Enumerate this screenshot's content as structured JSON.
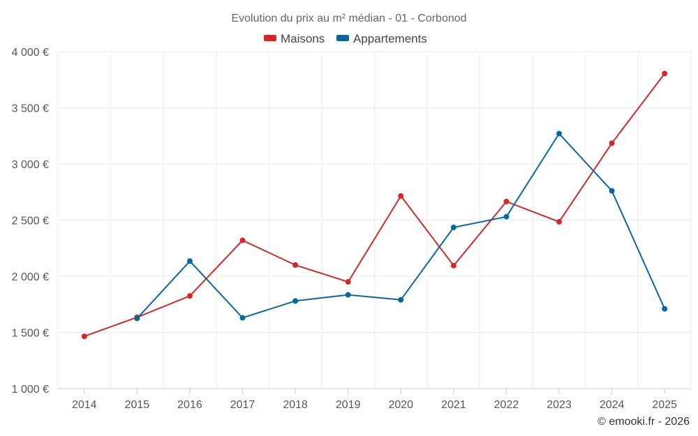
{
  "chart_data": {
    "type": "line",
    "title": "Evolution du prix au m² médian - 01 - Corbonod",
    "categories": [
      "2014",
      "2015",
      "2016",
      "2017",
      "2018",
      "2019",
      "2020",
      "2021",
      "2022",
      "2023",
      "2024",
      "2025"
    ],
    "series": [
      {
        "name": "Maisons",
        "color": "#d62728",
        "values": [
          1465,
          1635,
          1825,
          2320,
          2100,
          1950,
          2715,
          2095,
          2665,
          2485,
          3185,
          3805
        ]
      },
      {
        "name": "Appartements",
        "color": "#0b66a0",
        "values": [
          null,
          1625,
          2135,
          1630,
          1780,
          1835,
          1790,
          2435,
          2530,
          3270,
          2760,
          1710
        ]
      }
    ],
    "ylim": [
      1000,
      4000
    ],
    "yticks": [
      1000,
      1500,
      2000,
      2500,
      3000,
      3500,
      4000
    ],
    "ytick_labels": [
      "1 000 €",
      "1 500 €",
      "2 000 €",
      "2 500 €",
      "3 000 €",
      "3 500 €",
      "4 000 €"
    ],
    "xlabel": "",
    "ylabel": "",
    "legend_position": "top-center",
    "grid": true
  },
  "credit": "© emooki.fr - 2026"
}
